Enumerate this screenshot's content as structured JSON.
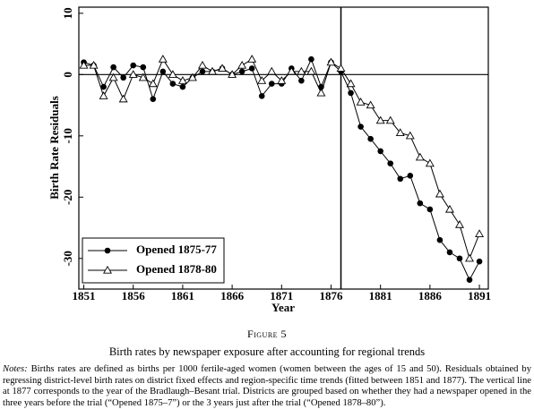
{
  "chart_data": {
    "type": "line",
    "x_label": "Year",
    "y_label": "Birth Rate Residuals",
    "x": [
      1851,
      1852,
      1853,
      1854,
      1855,
      1856,
      1857,
      1858,
      1859,
      1860,
      1861,
      1862,
      1863,
      1864,
      1865,
      1866,
      1867,
      1868,
      1869,
      1870,
      1871,
      1872,
      1873,
      1874,
      1875,
      1876,
      1877,
      1878,
      1879,
      1880,
      1881,
      1882,
      1883,
      1884,
      1885,
      1886,
      1887,
      1888,
      1889,
      1890,
      1891
    ],
    "series": [
      {
        "name": "Opened 1875-77",
        "color": "#000000",
        "marker": "circle",
        "values": [
          2,
          1.5,
          -2,
          1.2,
          -0.5,
          1.5,
          1.2,
          -4,
          0.5,
          -1.5,
          -2,
          -0.5,
          0.5,
          0.5,
          1,
          0,
          0.5,
          1,
          -3.5,
          -1.5,
          -1.5,
          1,
          -1,
          2.5,
          -2,
          2,
          0.5,
          -3,
          -8.5,
          -10.5,
          -12.5,
          -14.5,
          -17,
          -16.5,
          -21,
          -22,
          -27,
          -29,
          -30,
          -33.5,
          -30.5
        ]
      },
      {
        "name": "Opened 1878-80",
        "color": "#000000",
        "marker": "triangle",
        "values": [
          1.5,
          1.5,
          -3.5,
          -0.5,
          -4,
          0,
          -0.5,
          -1.5,
          2.5,
          0,
          -1,
          -0.5,
          1.5,
          0.5,
          1,
          0,
          1.5,
          2.5,
          -1,
          0.5,
          -1,
          0.5,
          0.5,
          0.5,
          -3,
          2,
          1,
          -1.5,
          -4.5,
          -5,
          -7.5,
          -7.5,
          -9.5,
          -10,
          -13.5,
          -14.5,
          -19.5,
          -22,
          -24.5,
          -30,
          -26
        ]
      }
    ],
    "xlim": [
      1850.5,
      1891.9
    ],
    "ylim": [
      -35,
      11
    ],
    "xticks": [
      1851,
      1856,
      1861,
      1866,
      1871,
      1876,
      1881,
      1886,
      1891
    ],
    "yticks": [
      10,
      0,
      -10,
      -20,
      -30
    ],
    "vline": 1877,
    "hline": 0,
    "legend": "lower left",
    "grid": false
  },
  "caption": {
    "figure": "Figure 5",
    "title": "Birth rates by newspaper exposure after accounting for regional trends",
    "notes_label": "Notes:",
    "notes": "Births rates are defined as births per 1000 fertile-aged women (women between the ages of 15 and 50). Residuals obtained by regressing district-level birth rates on district fixed effects and region-specific time trends (fitted between 1851 and 1877). The vertical line at 1877 corresponds to the year of the Bradlaugh–Besant trial. Districts are grouped based on whether they had a newspaper opened in the three years before the trial (“Opened 1875–7”) or the 3 years just after the trial (“Opened 1878–80”)."
  }
}
